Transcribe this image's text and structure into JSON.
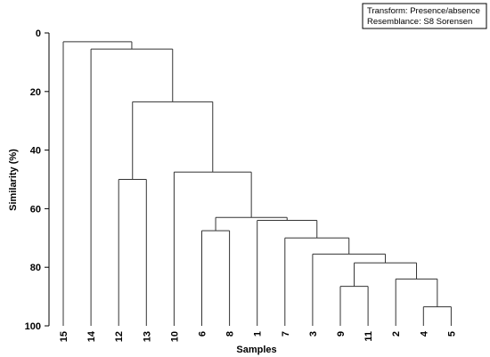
{
  "chart_data": {
    "type": "dendrogram",
    "xlabel": "Samples",
    "ylabel": "Similarity (%)",
    "ylim": [
      0,
      100
    ],
    "y_inverted": true,
    "yticks": [
      0,
      20,
      40,
      60,
      80,
      100
    ],
    "legend": {
      "placement": "top-right",
      "lines": [
        "Transform: Presence/absence",
        "Resemblance: S8 Sorensen"
      ]
    },
    "leaves": [
      "15",
      "14",
      "12",
      "13",
      "10",
      "6",
      "8",
      "1",
      "7",
      "3",
      "9",
      "11",
      "2",
      "4",
      "5"
    ],
    "merges": [
      {
        "id": "m1",
        "left": "4",
        "right": "5",
        "similarity": 93.5
      },
      {
        "id": "m2",
        "left": "2",
        "right": "m1",
        "similarity": 84.0
      },
      {
        "id": "m3",
        "left": "9",
        "right": "11",
        "similarity": 86.5
      },
      {
        "id": "m4",
        "left": "m3",
        "right": "m2",
        "similarity": 78.5
      },
      {
        "id": "m5",
        "left": "3",
        "right": "m4",
        "similarity": 75.5
      },
      {
        "id": "m6",
        "left": "7",
        "right": "m5",
        "similarity": 70.0
      },
      {
        "id": "m7",
        "left": "1",
        "right": "m6",
        "similarity": 64.0
      },
      {
        "id": "m8",
        "left": "6",
        "right": "8",
        "similarity": 67.5
      },
      {
        "id": "m9",
        "left": "m8",
        "right": "m7",
        "similarity": 63.0
      },
      {
        "id": "m10",
        "left": "10",
        "right": "m9",
        "similarity": 47.5
      },
      {
        "id": "m11",
        "left": "12",
        "right": "13",
        "similarity": 50.0
      },
      {
        "id": "m12",
        "left": "m11",
        "right": "m10",
        "similarity": 23.5
      },
      {
        "id": "m13",
        "left": "14",
        "right": "m12",
        "similarity": 5.5
      },
      {
        "id": "m14",
        "left": "15",
        "right": "m13",
        "similarity": 3.0
      }
    ],
    "colors": {
      "lines": "#333333",
      "text": "#000000"
    }
  }
}
